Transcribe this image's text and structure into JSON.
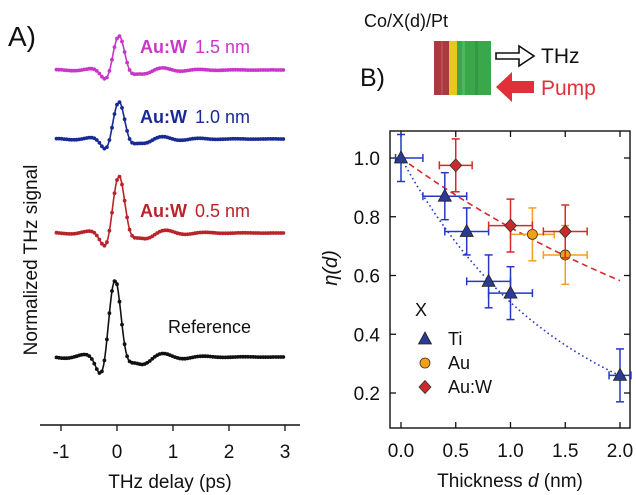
{
  "panel_a": {
    "panel_label": "A)",
    "ylabel": "Normalized THz signal",
    "xlabel": "THz delay (ps)",
    "x_ticks": [
      "-1",
      "0",
      "1",
      "2",
      "3"
    ],
    "colors": {
      "aw15": "#c837c8",
      "aw10": "#1a2a94",
      "aw05": "#b8242a",
      "ref": "#111111"
    }
  },
  "panel_b": {
    "panel_label": "B)",
    "schematic": {
      "stack_label": "Co/X(d)/Pt",
      "thz_label": "THz",
      "pump_label": "Pump",
      "pump_color": "#e0313a"
    },
    "ylabel_symbol": "η(d)",
    "xlabel_prefix": "Thickness ",
    "xlabel_var": "d",
    "xlabel_unit": " (nm)",
    "x_ticks": [
      "0.0",
      "0.5",
      "1.0",
      "1.5",
      "2.0"
    ],
    "y_ticks": [
      "0.2",
      "0.4",
      "0.6",
      "0.8",
      "1.0"
    ],
    "legend_title": "X",
    "colors": {
      "ti": "#2b3a93",
      "au": "#f2a116",
      "auw": "#cc2a2a",
      "ti_err": "#2438c8",
      "au_err": "#f0a020",
      "auw_err": "#d8282a"
    }
  },
  "chart_data": [
    {
      "type": "line",
      "xlabel": "THz delay (ps)",
      "ylabel": "Normalized THz signal",
      "xlim": [
        -1.1,
        3.0
      ],
      "series": [
        {
          "name": "Au:W",
          "value_label": "1.5 nm",
          "color": "#c837c8",
          "offset": 3.0,
          "peak_time": 0.02,
          "amplitude": 0.55,
          "period": 0.65,
          "decay": 0.55
        },
        {
          "name": "Au:W",
          "value_label": "1.0 nm",
          "color": "#1a2a94",
          "offset": 2.0,
          "peak_time": 0.02,
          "amplitude": 0.6,
          "period": 0.65,
          "decay": 0.55
        },
        {
          "name": "Au:W",
          "value_label": "0.5 nm",
          "color": "#b8242a",
          "offset": 1.0,
          "peak_time": 0.02,
          "amplitude": 0.92,
          "period": 0.7,
          "decay": 0.5
        },
        {
          "name": "Reference",
          "value_label": "",
          "color": "#111111",
          "offset": 0.0,
          "peak_time": -0.05,
          "amplitude": 1.25,
          "period": 0.72,
          "decay": 0.5
        }
      ]
    },
    {
      "type": "scatter",
      "xlabel": "Thickness d (nm)",
      "ylabel": "η(d)",
      "xlim": [
        -0.08,
        2.1
      ],
      "ylim": [
        0.12,
        1.12
      ],
      "series": [
        {
          "name": "Ti",
          "marker": "triangle",
          "color": "#2b3a93",
          "err_color": "#2438c8",
          "points": [
            {
              "x": 0.0,
              "y": 1.0,
              "xerr": 0.2,
              "yerr": 0.08
            },
            {
              "x": 0.4,
              "y": 0.87,
              "xerr": 0.2,
              "yerr": 0.08
            },
            {
              "x": 0.6,
              "y": 0.75,
              "xerr": 0.2,
              "yerr": 0.08
            },
            {
              "x": 0.8,
              "y": 0.58,
              "xerr": 0.2,
              "yerr": 0.09
            },
            {
              "x": 1.0,
              "y": 0.54,
              "xerr": 0.2,
              "yerr": 0.09
            },
            {
              "x": 2.0,
              "y": 0.26,
              "xerr": 0.1,
              "yerr": 0.09
            }
          ]
        },
        {
          "name": "Au",
          "marker": "circle",
          "color": "#f2a116",
          "err_color": "#f0a020",
          "points": [
            {
              "x": 1.2,
              "y": 0.74,
              "xerr": 0.2,
              "yerr": 0.09
            },
            {
              "x": 1.5,
              "y": 0.67,
              "xerr": 0.2,
              "yerr": 0.1
            }
          ]
        },
        {
          "name": "Au:W",
          "marker": "diamond",
          "color": "#cc2a2a",
          "err_color": "#d8282a",
          "points": [
            {
              "x": 0.5,
              "y": 0.975,
              "xerr": 0.15,
              "yerr": 0.09
            },
            {
              "x": 1.0,
              "y": 0.77,
              "xerr": 0.2,
              "yerr": 0.09
            },
            {
              "x": 1.5,
              "y": 0.75,
              "xerr": 0.2,
              "yerr": 0.09
            }
          ]
        }
      ],
      "fits": [
        {
          "for": "Ti",
          "style": "dotted",
          "color": "#2438c8",
          "model": "exp",
          "a": 1.0,
          "length": 1.48
        },
        {
          "for": "Au:W",
          "style": "dashed",
          "color": "#d8282a",
          "model": "exp",
          "a": 1.0,
          "length": 3.7
        }
      ]
    }
  ]
}
